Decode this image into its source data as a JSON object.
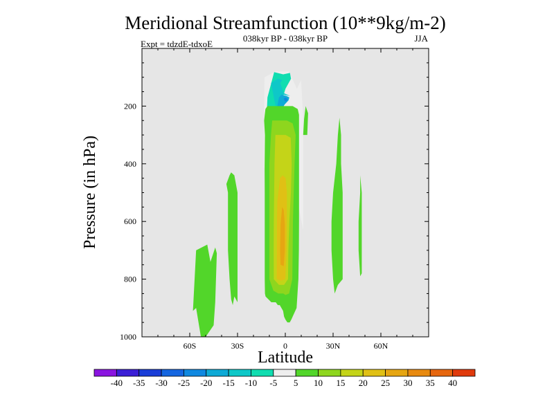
{
  "chart_data": {
    "type": "contour",
    "title": "Meridional Streamfunction (10**9kg/m-2)",
    "subtitle": "038kyr BP - 038kyr BP",
    "left_label": "Expt = tdzdE-tdxoE",
    "right_label": "JJA",
    "xlabel": "Latitude",
    "ylabel": "Pressure (in hPa)",
    "xlim": [
      -90,
      90
    ],
    "ylim": [
      1000,
      0
    ],
    "x_ticks": [
      {
        "value": -60,
        "label": "60S"
      },
      {
        "value": -30,
        "label": "30S"
      },
      {
        "value": 0,
        "label": "0"
      },
      {
        "value": 30,
        "label": "30N"
      },
      {
        "value": 60,
        "label": "60N"
      }
    ],
    "y_ticks": [
      {
        "value": 200,
        "label": "200"
      },
      {
        "value": 400,
        "label": "400"
      },
      {
        "value": 600,
        "label": "600"
      },
      {
        "value": 800,
        "label": "800"
      },
      {
        "value": 1000,
        "label": "1000"
      }
    ],
    "colorbar": {
      "levels": [
        "-40",
        "-35",
        "-30",
        "-25",
        "-20",
        "-15",
        "-10",
        "-5",
        "5",
        "10",
        "15",
        "20",
        "25",
        "30",
        "35",
        "40"
      ],
      "colors": [
        "#8a14e0",
        "#3b1fd6",
        "#1a3ed8",
        "#1566e0",
        "#0f88e0",
        "#0eaad6",
        "#0ec8c8",
        "#10ddb0",
        "#eeeeee",
        "#52d62a",
        "#8ed61e",
        "#c4d418",
        "#e0c015",
        "#e6a612",
        "#e88a10",
        "#e6660e",
        "#e03a0c"
      ]
    },
    "fields": [
      {
        "name": "upper-negative-cell",
        "polygons": [
          {
            "level": "-5",
            "pts": [
              [
                -13.5,
                410
              ],
              [
                -9.5,
                480
              ],
              [
                -2.9,
                440
              ],
              [
                4.6,
                440
              ],
              [
                11.2,
                630
              ],
              [
                11.2,
                240
              ],
              [
                9.9,
                110
              ],
              [
                7.3,
                140
              ],
              [
                2.3,
                80
              ],
              [
                -6.3,
                80
              ],
              [
                -13.1,
                100
              ]
            ]
          },
          {
            "level": "-10",
            "pts": [
              [
                -12.5,
                330
              ],
              [
                -6.3,
                250
              ],
              [
                -2.6,
                190
              ],
              [
                0.1,
                140
              ],
              [
                3.6,
                105
              ],
              [
                2.9,
                85
              ],
              [
                -1.3,
                90
              ],
              [
                -7.0,
                82
              ],
              [
                -11.2,
                170
              ]
            ]
          },
          {
            "level": "-15",
            "pts": [
              [
                -9.0,
                120
              ],
              [
                -5.0,
                230
              ],
              [
                -1.5,
                160
              ],
              [
                3.1,
                165
              ],
              [
                -1.0,
                155
              ],
              [
                -3.2,
                120
              ],
              [
                -1.9,
                110
              ],
              [
                -4.5,
                105
              ]
            ]
          },
          {
            "level": "-20",
            "pts": [
              [
                -4.0,
                170
              ],
              [
                -1.5,
                155
              ],
              [
                -2.5,
                160
              ],
              [
                0.8,
                165
              ],
              [
                2.5,
                170
              ],
              [
                2.0,
                180
              ],
              [
                -0.5,
                195
              ],
              [
                -1.5,
                205
              ],
              [
                0.2,
                230
              ],
              [
                -2.3,
                245
              ],
              [
                -4.7,
                240
              ],
              [
                -3.5,
                225
              ],
              [
                -5.5,
                225
              ],
              [
                -5.0,
                200
              ]
            ]
          },
          {
            "level": "-25",
            "pts": [
              [
                -1.0,
                175
              ],
              [
                0.0,
                170
              ],
              [
                1.4,
                175
              ],
              [
                0.6,
                185
              ],
              [
                -0.3,
                182
              ]
            ]
          }
        ]
      },
      {
        "name": "equatorial-positive-cell",
        "polygons": [
          {
            "level": "5",
            "pts": [
              [
                -13.3,
                250
              ],
              [
                -12.8,
                300
              ],
              [
                -13.0,
                410
              ],
              [
                -12.9,
                500
              ],
              [
                -12.9,
                600
              ],
              [
                -12.9,
                700
              ],
              [
                -12.9,
                800
              ],
              [
                -12.8,
                850
              ],
              [
                -12.4,
                860
              ],
              [
                -8.8,
                880
              ],
              [
                -6.0,
                880
              ],
              [
                -4.7,
                890
              ],
              [
                -3.5,
                890
              ],
              [
                -1.4,
                910
              ],
              [
                -0.8,
                930
              ],
              [
                0.1,
                940
              ],
              [
                1.3,
                950
              ],
              [
                2.8,
                950
              ],
              [
                3.8,
                940
              ],
              [
                4.6,
                930
              ],
              [
                7.1,
                900
              ],
              [
                8.2,
                800
              ],
              [
                8.5,
                700
              ],
              [
                8.6,
                600
              ],
              [
                8.6,
                500
              ],
              [
                8.6,
                400
              ],
              [
                8.6,
                300
              ],
              [
                8.6,
                230
              ],
              [
                7.8,
                210
              ],
              [
                4.6,
                200
              ],
              [
                0.0,
                200
              ],
              [
                -3.9,
                200
              ],
              [
                -7.9,
                200
              ],
              [
                -11.2,
                200
              ],
              [
                -12.5,
                210
              ]
            ]
          },
          {
            "level": "10",
            "pts": [
              [
                -8.2,
                250
              ],
              [
                -9.0,
                300
              ],
              [
                -10.0,
                400
              ],
              [
                -10.0,
                500
              ],
              [
                -10.0,
                600
              ],
              [
                -10.0,
                700
              ],
              [
                -10.0,
                800
              ],
              [
                -7.5,
                840
              ],
              [
                -4.4,
                850
              ],
              [
                -1.2,
                850
              ],
              [
                0.1,
                855
              ],
              [
                2.4,
                850
              ],
              [
                4.4,
                800
              ],
              [
                4.6,
                700
              ],
              [
                4.8,
                600
              ],
              [
                5.3,
                500
              ],
              [
                5.8,
                400
              ],
              [
                6.5,
                300
              ],
              [
                4.6,
                260
              ],
              [
                1.0,
                250
              ],
              [
                -4.0,
                250
              ]
            ]
          },
          {
            "level": "15",
            "pts": [
              [
                -6.2,
                300
              ],
              [
                -6.8,
                400
              ],
              [
                -7.0,
                500
              ],
              [
                -7.2,
                600
              ],
              [
                -7.3,
                700
              ],
              [
                -7.2,
                800
              ],
              [
                -4.0,
                820
              ],
              [
                -0.8,
                820
              ],
              [
                1.7,
                800
              ],
              [
                1.9,
                700
              ],
              [
                2.5,
                600
              ],
              [
                3.5,
                500
              ],
              [
                4.0,
                400
              ],
              [
                3.4,
                310
              ],
              [
                0.2,
                300
              ],
              [
                -3.0,
                300
              ]
            ]
          },
          {
            "level": "20",
            "pts": [
              [
                -3.3,
                450
              ],
              [
                -5.0,
                530
              ],
              [
                -5.2,
                600
              ],
              [
                -5.3,
                700
              ],
              [
                -5.4,
                800
              ],
              [
                -2.5,
                805
              ],
              [
                0.0,
                800
              ],
              [
                0.8,
                700
              ],
              [
                1.0,
                600
              ],
              [
                1.0,
                500
              ],
              [
                0.2,
                450
              ],
              [
                -1.7,
                440
              ]
            ]
          },
          {
            "level": "25",
            "pts": [
              [
                -2.0,
                550
              ],
              [
                -3.0,
                610
              ],
              [
                -3.3,
                700
              ],
              [
                -3.0,
                750
              ],
              [
                -1.0,
                755
              ],
              [
                -0.3,
                700
              ],
              [
                -0.3,
                610
              ],
              [
                -1.0,
                560
              ]
            ]
          }
        ]
      },
      {
        "name": "filaments",
        "polygons": [
          {
            "level": "5",
            "pts": [
              [
                11.8,
                245
              ],
              [
                11.2,
                300
              ],
              [
                13.8,
                300
              ],
              [
                14.3,
                225
              ],
              [
                13.4,
                210
              ],
              [
                12.8,
                200
              ]
            ]
          },
          {
            "level": "5",
            "pts": [
              [
                -53,
                1000
              ],
              [
                -56,
                900
              ],
              [
                -58,
                910
              ],
              [
                -56,
                700
              ],
              [
                -49,
                680
              ],
              [
                -47,
                740
              ],
              [
                -44,
                690
              ],
              [
                -43,
                710
              ],
              [
                -44,
                880
              ],
              [
                -45,
                960
              ],
              [
                -50,
                1000
              ]
            ]
          },
          {
            "level": "5",
            "pts": [
              [
                -34,
                870
              ],
              [
                -35,
                800
              ],
              [
                -36,
                700
              ],
              [
                -36,
                600
              ],
              [
                -36,
                500
              ],
              [
                -37,
                470
              ],
              [
                -35,
                440
              ],
              [
                -34,
                430
              ],
              [
                -32,
                440
              ],
              [
                -31,
                470
              ],
              [
                -30,
                500
              ],
              [
                -30,
                600
              ],
              [
                -30,
                700
              ],
              [
                -30,
                800
              ],
              [
                -30,
                880
              ],
              [
                -31,
                870
              ],
              [
                -32,
                860
              ],
              [
                -33,
                890
              ]
            ]
          },
          {
            "level": "5",
            "pts": [
              [
                31,
                850
              ],
              [
                30,
                800
              ],
              [
                29,
                700
              ],
              [
                29,
                600
              ],
              [
                30,
                500
              ],
              [
                32,
                400
              ],
              [
                33,
                300
              ],
              [
                34,
                240
              ],
              [
                35,
                300
              ],
              [
                35,
                400
              ],
              [
                36,
                500
              ],
              [
                36,
                600
              ],
              [
                36,
                700
              ],
              [
                36,
                800
              ],
              [
                33,
                820
              ]
            ]
          },
          {
            "level": "5",
            "pts": [
              [
                47,
                790
              ],
              [
                46,
                700
              ],
              [
                46,
                600
              ],
              [
                47,
                500
              ],
              [
                47,
                440
              ],
              [
                48,
                500
              ],
              [
                48,
                600
              ],
              [
                48,
                700
              ],
              [
                48,
                780
              ]
            ]
          }
        ]
      }
    ]
  }
}
